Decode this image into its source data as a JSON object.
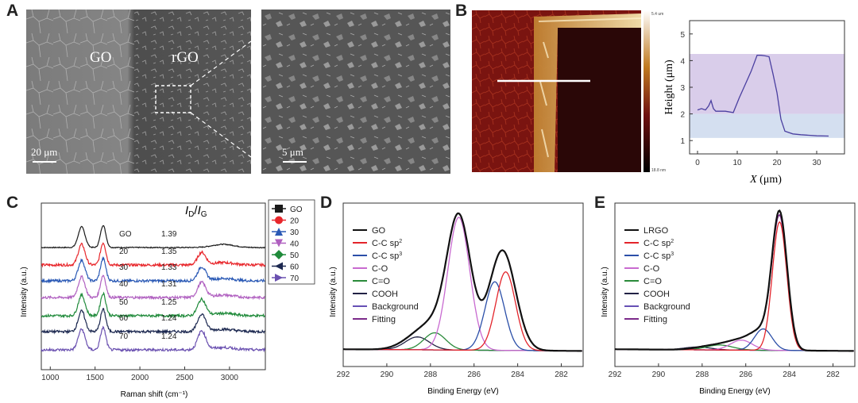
{
  "panels": {
    "a": "A",
    "b": "B",
    "c": "C",
    "d": "D",
    "e": "E"
  },
  "panel_a": {
    "go_label": "GO",
    "rgo_label": "rGO",
    "scale_left": "20 μm",
    "scale_right": "5 μm"
  },
  "panel_b": {
    "colorbar_max": "5.4 um",
    "colorbar_min": "18.8 nm",
    "ylabel": "Height (μm)",
    "xlabel_var": "X",
    "xlabel_unit": " (μm)"
  },
  "panel_c": {
    "ratio_header": "ID/IG",
    "ratio_main": "I",
    "ratio_sub1": "D",
    "ratio_slash": "/",
    "ratio_main2": "I",
    "ratio_sub2": "G",
    "ylabel": "Intensity (a.u.)",
    "xlabel": "Raman shift (cm⁻¹)"
  },
  "panel_d": {
    "ylabel": "Intensity (a.u.)",
    "xlabel": "Binding Energy (eV)"
  },
  "panel_e": {
    "ylabel": "Intensity (a.u.)",
    "xlabel": "Binding Energy (eV)"
  },
  "chart_data": [
    {
      "id": "afm_profile",
      "type": "line",
      "xlabel": "X (μm)",
      "ylabel": "Height (μm)",
      "xlim": [
        -2,
        37
      ],
      "ylim": [
        0.5,
        5.5
      ],
      "xticks": [
        "0",
        "10",
        "20",
        "30"
      ],
      "yticks": [
        "1",
        "2",
        "3",
        "4",
        "5"
      ],
      "bands": [
        {
          "from": 2.0,
          "to": 4.25,
          "color": "#d9cdea"
        },
        {
          "from": 1.1,
          "to": 2.0,
          "color": "#d4dff0"
        }
      ],
      "x": [
        0,
        1,
        2,
        2.8,
        3.4,
        4,
        4.6,
        5.5,
        7,
        9,
        10.5,
        12,
        13.5,
        15,
        16,
        17,
        18,
        19,
        20,
        21,
        22,
        24,
        26,
        28,
        30,
        33
      ],
      "y": [
        2.15,
        2.2,
        2.15,
        2.3,
        2.5,
        2.2,
        2.1,
        2.1,
        2.1,
        2.05,
        2.6,
        3.1,
        3.6,
        4.2,
        4.2,
        4.18,
        4.15,
        3.5,
        2.8,
        1.8,
        1.35,
        1.25,
        1.22,
        1.2,
        1.18,
        1.17
      ]
    },
    {
      "id": "raman",
      "type": "line",
      "xlabel": "Raman shift (cm⁻¹)",
      "ylabel": "Intensity (a.u.)",
      "xlim": [
        900,
        3400
      ],
      "xticks": [
        "1000",
        "1500",
        "2000",
        "2500",
        "3000"
      ],
      "series": [
        {
          "name": "GO",
          "ratio": "1.39",
          "color": "#1a1a1a",
          "marker": "square"
        },
        {
          "name": "20",
          "ratio": "1.35",
          "color": "#e8262b",
          "marker": "circle"
        },
        {
          "name": "30",
          "ratio": "1.33",
          "color": "#2a59b5",
          "marker": "triangle-up"
        },
        {
          "name": "40",
          "ratio": "1.31",
          "color": "#b060c0",
          "marker": "triangle-down"
        },
        {
          "name": "50",
          "ratio": "1.25",
          "color": "#1f8a3a",
          "marker": "diamond"
        },
        {
          "name": "60",
          "ratio": "1.24",
          "color": "#1c2850",
          "marker": "triangle-left"
        },
        {
          "name": "70",
          "ratio": "1.24",
          "color": "#6a50b0",
          "marker": "triangle-right"
        }
      ]
    },
    {
      "id": "xps_go",
      "type": "line",
      "xlabel": "Binding Energy (eV)",
      "ylabel": "Intensity (a.u.)",
      "xlim": [
        292,
        281
      ],
      "xticks": [
        "292",
        "290",
        "288",
        "286",
        "284",
        "282"
      ],
      "series": [
        {
          "name": "GO",
          "color": "#111111",
          "width": 2.2,
          "peaks": [
            [
              286.7,
              0.93,
              0.55
            ],
            [
              284.7,
              0.7,
              0.6
            ],
            [
              288.6,
              0.09,
              0.7
            ],
            [
              287.8,
              0.12,
              0.6
            ]
          ]
        },
        {
          "name": "C-C sp²",
          "label_main": "C-C sp",
          "label_sup": "2",
          "color": "#e3242b",
          "width": 1.3,
          "peaks": [
            [
              284.55,
              0.55,
              0.45
            ]
          ]
        },
        {
          "name": "C-C sp³",
          "label_main": "C-C sp",
          "label_sup": "3",
          "color": "#2b4fa8",
          "width": 1.3,
          "peaks": [
            [
              285.05,
              0.48,
              0.45
            ]
          ]
        },
        {
          "name": "C-O",
          "color": "#c86ad0",
          "width": 1.3,
          "peaks": [
            [
              286.7,
              0.93,
              0.5
            ]
          ]
        },
        {
          "name": "C=O",
          "color": "#2a8a3a",
          "width": 1.3,
          "peaks": [
            [
              287.8,
              0.12,
              0.5
            ]
          ]
        },
        {
          "name": "COOH",
          "color": "#222244",
          "width": 1.3,
          "peaks": [
            [
              288.6,
              0.09,
              0.55
            ]
          ]
        },
        {
          "name": "Background",
          "color": "#6650b5",
          "width": 1.3,
          "background": true
        },
        {
          "name": "Fitting",
          "color": "#7b2a8a",
          "width": 1.6,
          "peaks": [
            [
              286.7,
              0.93,
              0.55
            ],
            [
              284.7,
              0.7,
              0.6
            ],
            [
              288.6,
              0.09,
              0.7
            ],
            [
              287.8,
              0.12,
              0.6
            ]
          ]
        }
      ]
    },
    {
      "id": "xps_lrgo",
      "type": "line",
      "xlabel": "Binding Energy (eV)",
      "ylabel": "Intensity (a.u.)",
      "xlim": [
        292,
        281
      ],
      "xticks": [
        "292",
        "290",
        "288",
        "286",
        "284",
        "282"
      ],
      "series": [
        {
          "name": "LRGO",
          "color": "#111111",
          "width": 2.2,
          "peaks": [
            [
              284.45,
              0.95,
              0.35
            ],
            [
              285.3,
              0.12,
              0.5
            ],
            [
              286.3,
              0.06,
              0.6
            ],
            [
              287.5,
              0.03,
              0.7
            ]
          ]
        },
        {
          "name": "C-C sp²",
          "label_main": "C-C sp",
          "label_sup": "2",
          "color": "#e3242b",
          "width": 1.3,
          "peaks": [
            [
              284.45,
              0.9,
              0.33
            ]
          ]
        },
        {
          "name": "C-C sp³",
          "label_main": "C-C sp",
          "label_sup": "3",
          "color": "#2b4fa8",
          "width": 1.3,
          "peaks": [
            [
              285.2,
              0.15,
              0.4
            ]
          ]
        },
        {
          "name": "C-O",
          "color": "#c86ad0",
          "width": 1.3,
          "peaks": [
            [
              286.2,
              0.07,
              0.5
            ]
          ]
        },
        {
          "name": "C=O",
          "color": "#2a8a3a",
          "width": 1.3,
          "peaks": [
            [
              287.2,
              0.035,
              0.6
            ]
          ]
        },
        {
          "name": "COOH",
          "color": "#222244",
          "width": 1.3,
          "peaks": [
            [
              288.2,
              0.02,
              0.6
            ]
          ]
        },
        {
          "name": "Background",
          "color": "#6650b5",
          "width": 1.3,
          "background": true
        },
        {
          "name": "Fitting",
          "color": "#7b2a8a",
          "width": 1.6,
          "peaks": [
            [
              284.45,
              0.92,
              0.35
            ],
            [
              285.3,
              0.12,
              0.5
            ],
            [
              286.3,
              0.06,
              0.6
            ],
            [
              287.5,
              0.03,
              0.7
            ]
          ]
        }
      ]
    }
  ]
}
